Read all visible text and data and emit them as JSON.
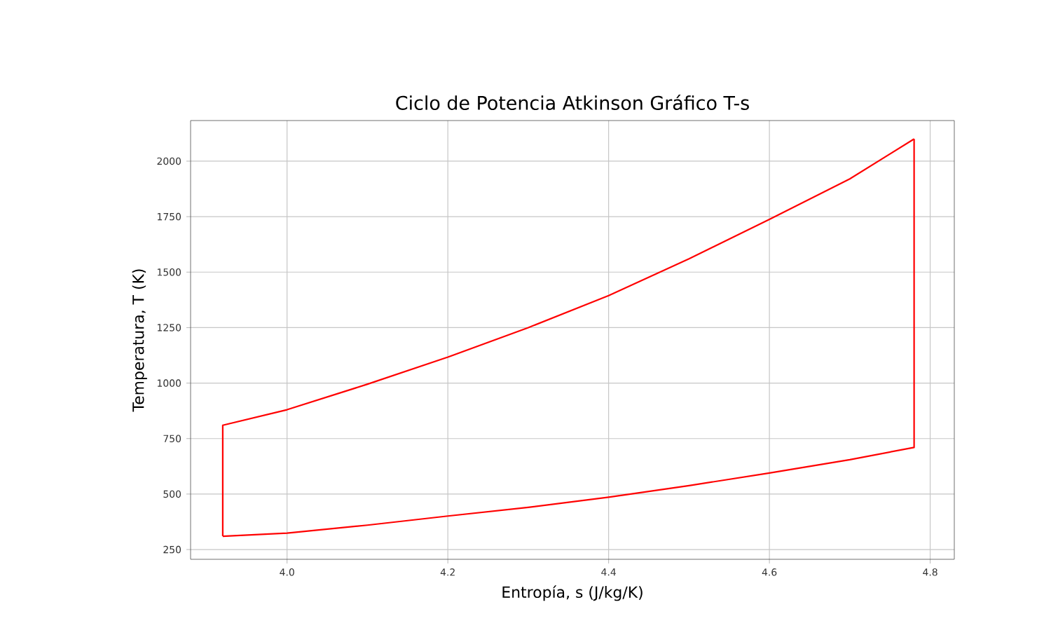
{
  "chart_data": {
    "type": "line",
    "title": "Ciclo de Potencia Atkinson Gráfico T-s",
    "xlabel": "Entropía, s (J/kg/K)",
    "ylabel": "Temperatura, T (K)",
    "series": [
      {
        "color": "#ff0000",
        "x": [
          3.92,
          3.92,
          4.0,
          4.1,
          4.2,
          4.3,
          4.4,
          4.5,
          4.6,
          4.7,
          4.78
        ],
        "values": [
          310,
          810,
          880,
          995,
          1117,
          1250,
          1394,
          1560,
          1738,
          1920,
          2100
        ]
      },
      {
        "color": "#ff0000",
        "x": [
          3.92,
          4.0,
          4.1,
          4.2,
          4.3,
          4.4,
          4.5,
          4.6,
          4.7,
          4.78,
          4.78
        ],
        "values": [
          310,
          324,
          360,
          401,
          440,
          486,
          538,
          595,
          655,
          710,
          2100
        ]
      }
    ],
    "xlim": [
      3.88,
      4.83
    ],
    "ylim": [
      206,
      2183
    ],
    "xticks": [
      {
        "value": 4,
        "label": "4.0"
      },
      4.2,
      4.4,
      4.6,
      4.8
    ],
    "yticks": [
      250,
      500,
      750,
      1000,
      1250,
      1500,
      1750,
      2000
    ],
    "grid": true,
    "marker": "none",
    "line_style": "solid"
  }
}
